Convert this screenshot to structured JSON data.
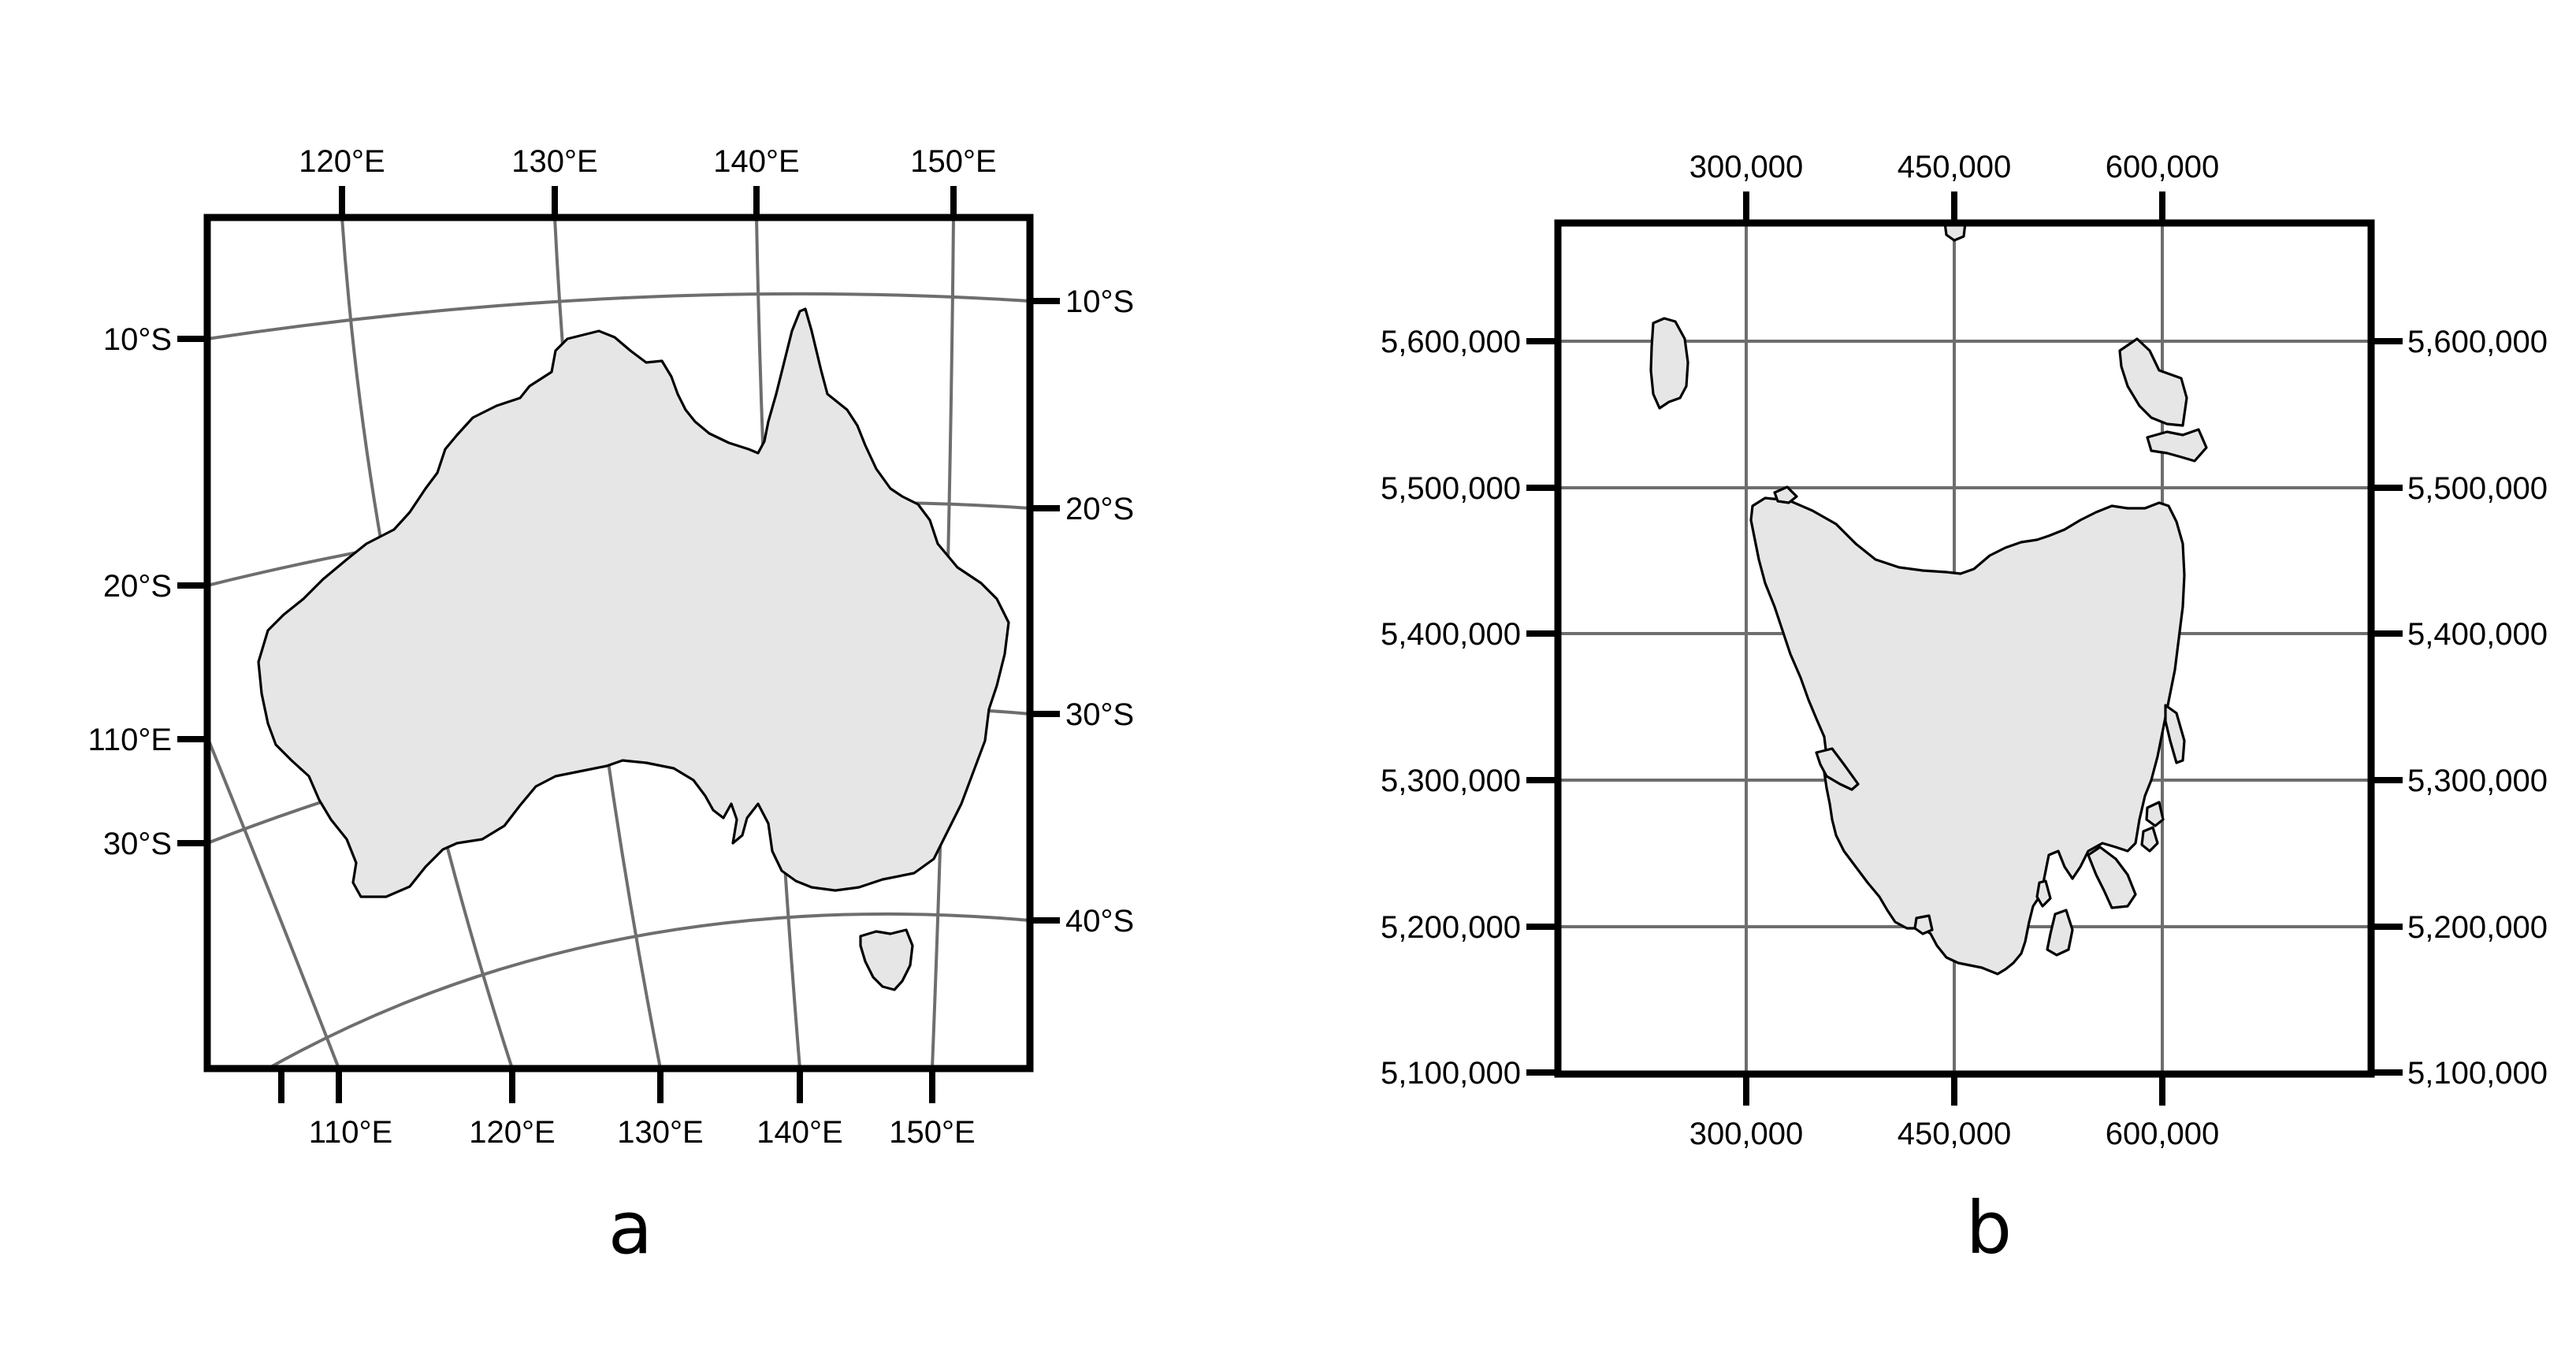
{
  "panel_a": {
    "caption": "a",
    "top_labels": [
      "120°E",
      "130°E",
      "140°E",
      "150°E"
    ],
    "bottom_labels": [
      "110°E",
      "120°E",
      "130°E",
      "140°E",
      "150°E"
    ],
    "left_labels": [
      "10°S",
      "20°S",
      "110°E",
      "30°S"
    ],
    "right_labels": [
      "10°S",
      "20°S",
      "30°S",
      "40°S"
    ],
    "land_feature": "Australia"
  },
  "panel_b": {
    "caption": "b",
    "top_labels": [
      "300,000",
      "450,000",
      "600,000"
    ],
    "bottom_labels": [
      "300,000",
      "450,000",
      "600,000"
    ],
    "left_labels": [
      "5,600,000",
      "5,500,000",
      "5,400,000",
      "5,300,000",
      "5,200,000",
      "5,100,000"
    ],
    "right_labels": [
      "5,600,000",
      "5,500,000",
      "5,400,000",
      "5,300,000",
      "5,200,000",
      "5,100,000"
    ],
    "land_feature": "Tasmania"
  },
  "colors": {
    "land": "#e6e6e6",
    "graticule": "#6e6e6e",
    "frame": "#000000",
    "background": "#ffffff"
  }
}
